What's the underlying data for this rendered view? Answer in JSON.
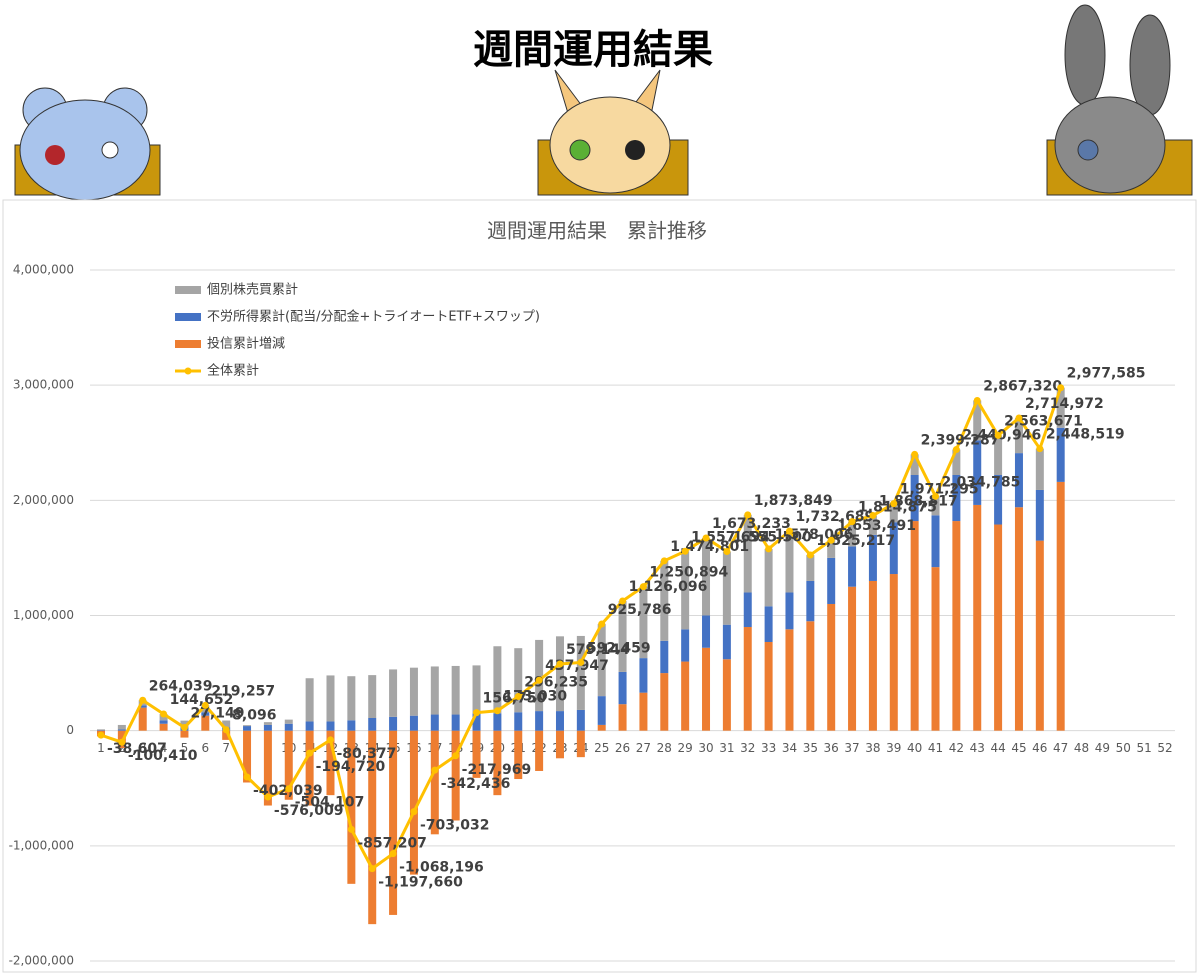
{
  "header": {
    "title": "週間運用結果"
  },
  "chart_data": {
    "type": "stacked-bar-line",
    "title": "週間運用結果　累計推移",
    "categories": [
      "1",
      "2",
      "3",
      "4",
      "5",
      "6",
      "7",
      "8",
      "9",
      "10",
      "11",
      "12",
      "13",
      "14",
      "15",
      "16",
      "17",
      "18",
      "19",
      "20",
      "21",
      "22",
      "23",
      "24",
      "25",
      "26",
      "27",
      "28",
      "29",
      "30",
      "31",
      "32",
      "33",
      "34",
      "35",
      "36",
      "37",
      "38",
      "39",
      "40",
      "41",
      "42",
      "43",
      "44",
      "45",
      "46",
      "47",
      "48",
      "49",
      "50",
      "51",
      "52"
    ],
    "ylim": [
      -2000000,
      4000000
    ],
    "yticks": [
      {
        "value": -2000000,
        "label": "-2,000,000"
      },
      {
        "value": -1000000,
        "label": "-1,000,000"
      },
      0,
      {
        "value": 1000000,
        "label": "1,000,000"
      },
      {
        "value": 2000000,
        "label": "2,000,000"
      },
      {
        "value": 3000000,
        "label": "3,000,000"
      },
      {
        "value": 4000000,
        "label": "4,000,000"
      }
    ],
    "grid": true,
    "legend": "upper-left",
    "series": [
      {
        "name": "個別株売買累計",
        "color": "#a5a5a5",
        "kind": "bar",
        "values": [
          6393,
          39590,
          44039,
          54652,
          57149,
          59257,
          58096,
          7961,
          23991,
          35893,
          375280,
          399623,
          382793,
          372340,
          411804,
          416968,
          417564,
          422031,
          416750,
          583030,
          556235,
          617947,
          649144,
          642459,
          625786,
          616096,
          620894,
          694801,
          677694,
          673233,
          635500,
          673849,
          498006,
          532689,
          225217,
          153491,
          214875,
          168817,
          161295,
          179287,
          164785,
          220946,
          347320,
          343671,
          304972,
          358519,
          347585,
          null,
          null,
          null,
          null,
          null
        ]
      },
      {
        "name": "不労所得累計(配当/分配金+トライオートETF+スワップ)",
        "color": "#4472c4",
        "kind": "bar",
        "values": [
          5000,
          10000,
          20000,
          30000,
          30000,
          30000,
          30000,
          40000,
          50000,
          60000,
          80000,
          80000,
          90000,
          110000,
          120000,
          130000,
          140000,
          140000,
          150000,
          150000,
          160000,
          170000,
          170000,
          180000,
          250000,
          280000,
          300000,
          280000,
          280000,
          280000,
          300000,
          300000,
          310000,
          320000,
          350000,
          400000,
          350000,
          400000,
          450000,
          400000,
          450000,
          400000,
          560000,
          430000,
          470000,
          440000,
          470000,
          null,
          null,
          null,
          null,
          null
        ]
      },
      {
        "name": "投信累計増減",
        "color": "#ed7d31",
        "kind": "bar",
        "values": [
          -50000,
          -150000,
          200000,
          60000,
          -60000,
          130000,
          -80000,
          -450000,
          -650000,
          -600000,
          -650000,
          -560000,
          -1330000,
          -1680000,
          -1600000,
          -1250000,
          -900000,
          -780000,
          -410000,
          -560000,
          -420000,
          -350000,
          -240000,
          -230000,
          50000,
          230000,
          330000,
          500000,
          600000,
          720000,
          620000,
          900000,
          770000,
          880000,
          950000,
          1100000,
          1250000,
          1300000,
          1360000,
          1820000,
          1420000,
          1820000,
          1960000,
          1790000,
          1940000,
          1650000,
          2160000,
          null,
          null,
          null,
          null,
          null
        ]
      },
      {
        "name": "全体累計",
        "color": "#ffc000",
        "kind": "line",
        "values": [
          -38607,
          -100410,
          264039,
          144652,
          27149,
          219257,
          8096,
          -402039,
          -576009,
          -504107,
          -194720,
          -80377,
          -857207,
          -1197660,
          -1068196,
          -703032,
          -342436,
          -217969,
          156750,
          173030,
          296235,
          437947,
          579144,
          592459,
          925786,
          1126096,
          1250894,
          1474801,
          1557694,
          1673233,
          1555500,
          1873849,
          1578006,
          1732689,
          1525217,
          1653491,
          1814875,
          1868817,
          1971295,
          2399287,
          2034785,
          2440946,
          2867320,
          2563671,
          2714972,
          2448519,
          2977585,
          null,
          null,
          null,
          null,
          null
        ],
        "value_labels": [
          "-38,607",
          "-100,410",
          "264,039",
          "144,652",
          "27,149",
          "219,257",
          "8,096",
          "-402,039",
          "-576,009",
          "-504,107",
          "-194,720",
          "-80,377",
          "-857,207",
          "-1,197,660",
          "-1,068,196",
          "-703,032",
          "-342,436",
          "-217,969",
          "156,750",
          "173,030",
          "296,235",
          "437,947",
          "579,144",
          "592,459",
          "925,786",
          "1,126,096",
          "1,250,894",
          "1,474,801",
          "1,557,694",
          "1,673,233",
          "1,555,500",
          "1,873,849",
          "1,578,006",
          "1,732,689",
          "1,525,217",
          "1,653,491",
          "1,814,875",
          "1,868,817",
          "1,971,295",
          "2,399,287",
          "2,034,785",
          "2,440,946",
          "2,867,320",
          "2,563,671",
          "2,714,972",
          "2,448,519",
          "2,977,585",
          null,
          null,
          null,
          null,
          null
        ]
      }
    ]
  }
}
